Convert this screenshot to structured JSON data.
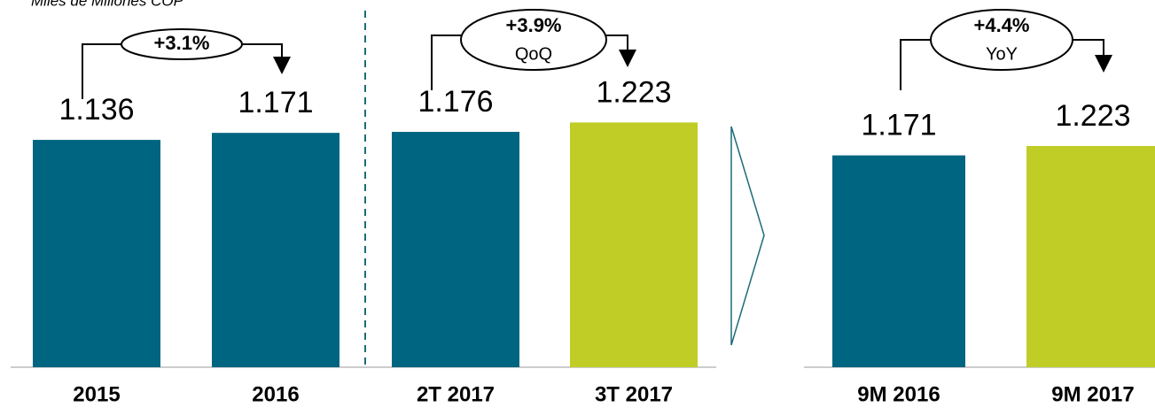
{
  "chart_data": [
    {
      "type": "bar",
      "subtitle": "Miles de Millones COP",
      "categories": [
        "2015",
        "2016",
        "2T 2017",
        "3T 2017"
      ],
      "values": [
        1136,
        1171,
        1176,
        1223
      ],
      "value_labels": [
        "1.136",
        "1.171",
        "1.176",
        "1.223"
      ],
      "colors": [
        "#006580",
        "#006580",
        "#006580",
        "#c0cd26"
      ],
      "ylim": [
        0,
        1835
      ],
      "annotations": [
        {
          "text": "+3.1%"
        },
        {
          "text": "+3.9%",
          "note": "QoQ"
        }
      ]
    },
    {
      "type": "bar",
      "categories": [
        "9M 2016",
        "9M 2017"
      ],
      "values": [
        1171,
        1223
      ],
      "value_labels": [
        "1.171",
        "1.223"
      ],
      "colors": [
        "#006580",
        "#c0cd26"
      ],
      "ylim": [
        0,
        2030
      ],
      "annotations": [
        {
          "text": "+4.4%",
          "note": "YoY"
        }
      ]
    }
  ]
}
